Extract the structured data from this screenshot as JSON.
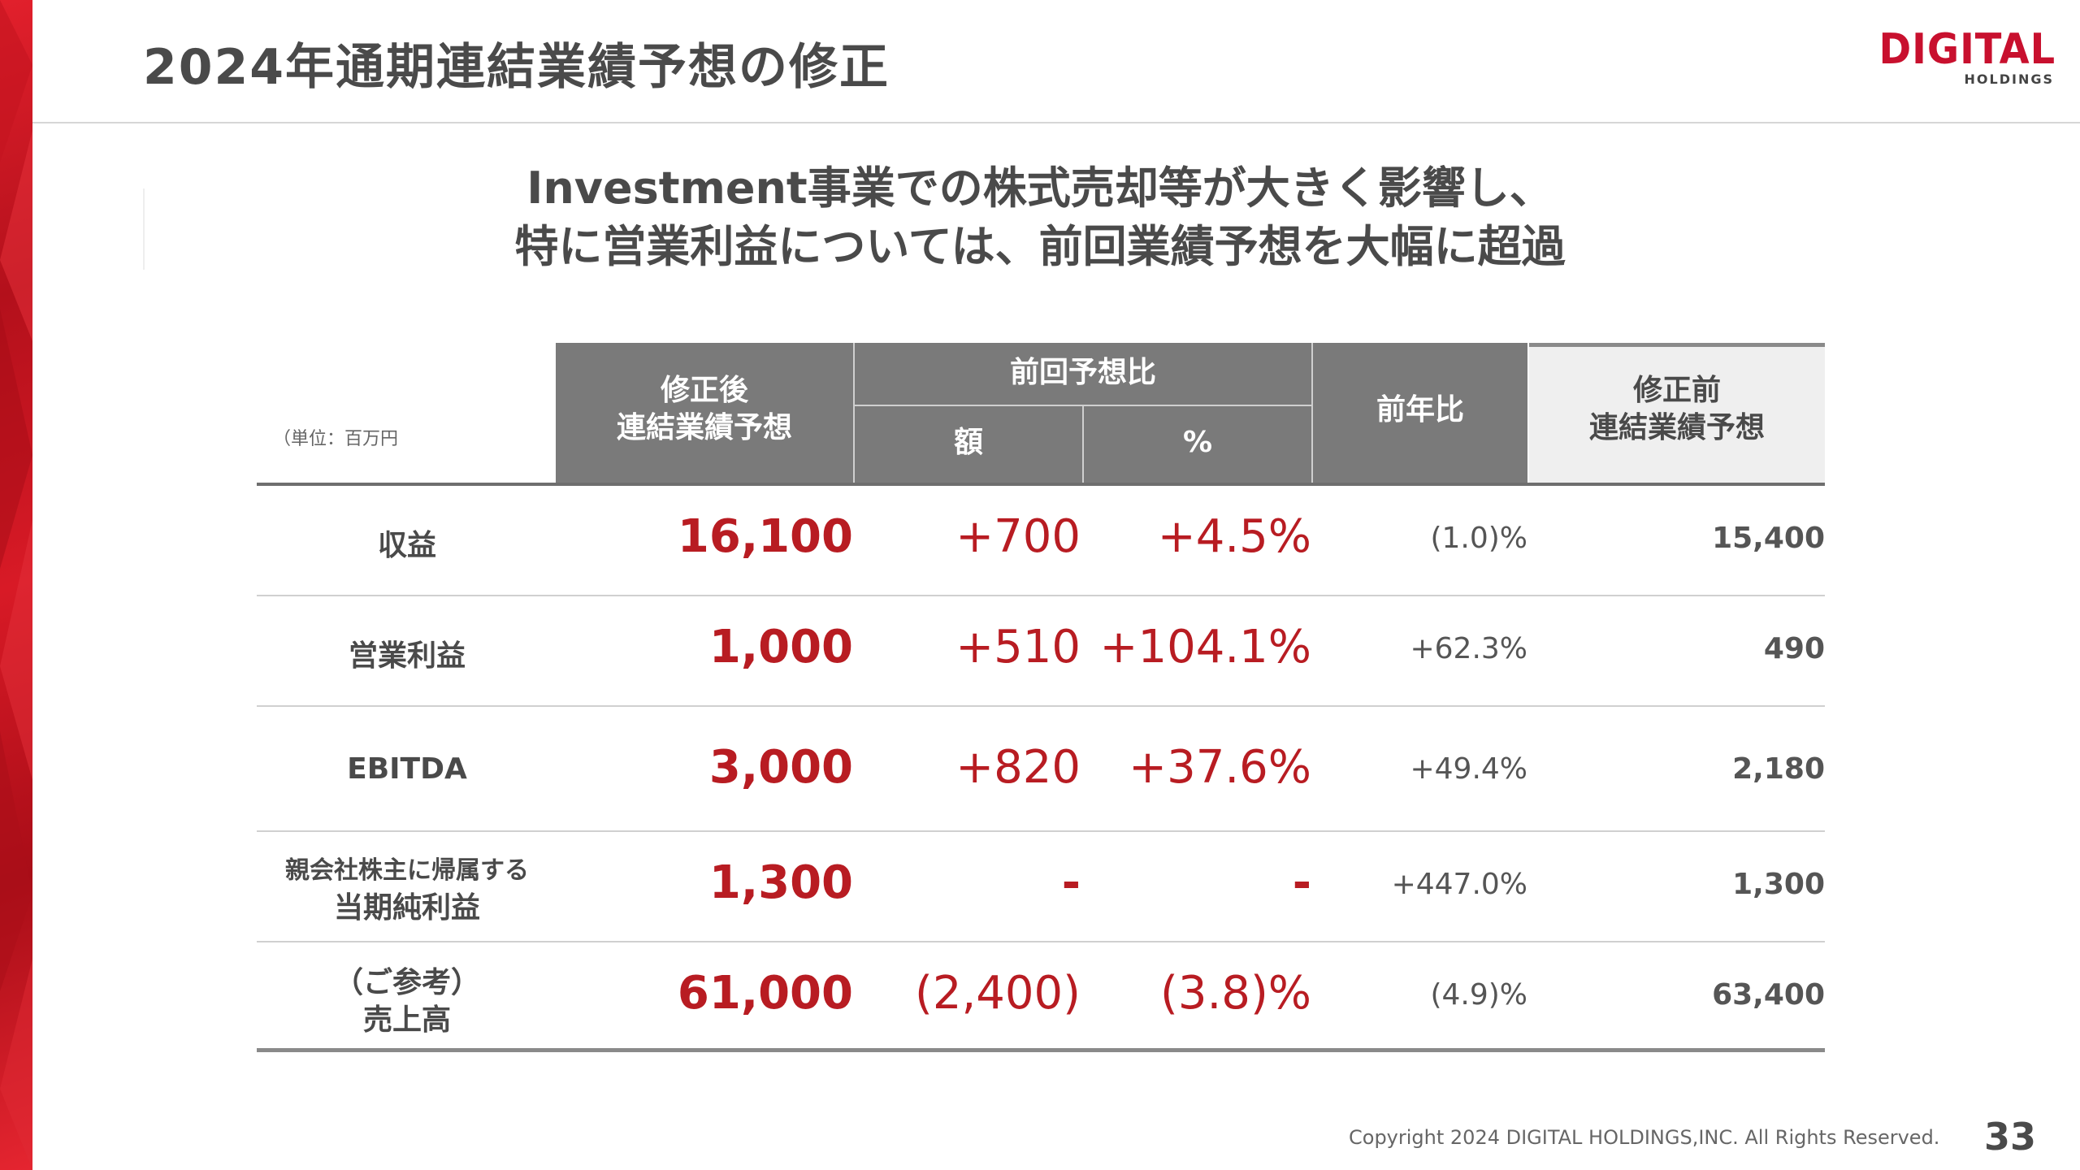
{
  "title": "2024年通期連結業績予想の修正",
  "logo": {
    "main": "DIGITAL",
    "sub": "HOLDINGS"
  },
  "headline": {
    "line1": "Investment事業での株式売却等が大きく影響し、",
    "line2": "特に営業利益については、前回業績予想を大幅に超過"
  },
  "table": {
    "unit": "（単位：百万円",
    "headers": {
      "revised_line1": "修正後",
      "revised_line2": "連結業績予想",
      "vs_previous": "前回予想比",
      "amount": "額",
      "percent": "%",
      "yoy": "前年比",
      "before_line1": "修正前",
      "before_line2": "連結業績予想"
    },
    "rows": [
      {
        "label": "収益",
        "revised": "16,100",
        "diff_amount": "+700",
        "diff_percent": "+4.5%",
        "yoy": "(1.0)%",
        "before": "15,400"
      },
      {
        "label": "営業利益",
        "revised": "1,000",
        "diff_amount": "+510",
        "diff_percent": "+104.1%",
        "yoy": "+62.3%",
        "before": "490"
      },
      {
        "label": "EBITDA",
        "revised": "3,000",
        "diff_amount": "+820",
        "diff_percent": "+37.6%",
        "yoy": "+49.4%",
        "before": "2,180"
      },
      {
        "label_line1": "親会社株主に帰属する",
        "label_line2": "当期純利益",
        "revised": "1,300",
        "diff_amount": "-",
        "diff_percent": "-",
        "yoy": "+447.0%",
        "before": "1,300"
      },
      {
        "label_line1": "（ご参考）",
        "label_line2": "売上高",
        "revised": "61,000",
        "diff_amount": "(2,400)",
        "diff_percent": "(3.8)%",
        "yoy": "(4.9)%",
        "before": "63,400"
      }
    ]
  },
  "footer": {
    "copyright": "Copyright 2024 DIGITAL HOLDINGS,INC. All Rights Reserved.",
    "page": "33"
  },
  "colors": {
    "accent_red": "#b81c22",
    "header_grey": "#7a7a7a",
    "header_light": "#efefef"
  }
}
